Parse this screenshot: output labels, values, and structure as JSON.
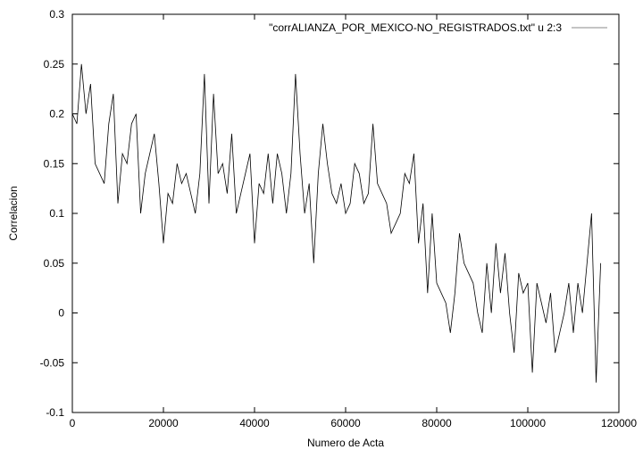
{
  "chart_data": {
    "type": "line",
    "title": "",
    "xlabel": "Numero de Acta",
    "ylabel": "Correlacion",
    "xlim": [
      0,
      120000
    ],
    "ylim": [
      -0.1,
      0.3
    ],
    "x_ticks": [
      0,
      20000,
      40000,
      60000,
      80000,
      100000,
      120000
    ],
    "x_tick_labels": [
      "0",
      "20000",
      "40000",
      "60000",
      "80000",
      "100000",
      "120000"
    ],
    "y_ticks": [
      -0.1,
      -0.05,
      0,
      0.05,
      0.1,
      0.15,
      0.2,
      0.25,
      0.3
    ],
    "y_tick_labels": [
      "-0.1",
      "-0.05",
      "0",
      "0.05",
      "0.1",
      "0.15",
      "0.2",
      "0.25",
      "0.3"
    ],
    "grid": false,
    "legend_position": "top-right",
    "line_color": "#000000",
    "legend_sample_color": "#a0a0a0",
    "series": [
      {
        "name": "\"corrALIANZA_POR_MEXICO-NO_REGISTRADOS.txt\" u 2:3",
        "x": [
          0,
          1000,
          2000,
          3000,
          4000,
          5000,
          6000,
          7000,
          8000,
          9000,
          10000,
          11000,
          12000,
          13000,
          14000,
          15000,
          16000,
          17000,
          18000,
          19000,
          20000,
          21000,
          22000,
          23000,
          24000,
          25000,
          26000,
          27000,
          28000,
          29000,
          30000,
          31000,
          32000,
          33000,
          34000,
          35000,
          36000,
          37000,
          38000,
          39000,
          40000,
          41000,
          42000,
          43000,
          44000,
          45000,
          46000,
          47000,
          48000,
          49000,
          50000,
          51000,
          52000,
          53000,
          54000,
          55000,
          56000,
          57000,
          58000,
          59000,
          60000,
          61000,
          62000,
          63000,
          64000,
          65000,
          66000,
          67000,
          68000,
          69000,
          70000,
          71000,
          72000,
          73000,
          74000,
          75000,
          76000,
          77000,
          78000,
          79000,
          80000,
          81000,
          82000,
          83000,
          84000,
          85000,
          86000,
          87000,
          88000,
          89000,
          90000,
          91000,
          92000,
          93000,
          94000,
          95000,
          96000,
          97000,
          98000,
          99000,
          100000,
          101000,
          102000,
          103000,
          104000,
          105000,
          106000,
          107000,
          108000,
          109000,
          110000,
          111000,
          112000,
          113000,
          114000,
          115000,
          116000
        ],
        "y": [
          0.2,
          0.19,
          0.25,
          0.2,
          0.23,
          0.15,
          0.14,
          0.13,
          0.19,
          0.22,
          0.11,
          0.16,
          0.15,
          0.19,
          0.2,
          0.1,
          0.14,
          0.16,
          0.18,
          0.13,
          0.07,
          0.12,
          0.11,
          0.15,
          0.13,
          0.14,
          0.12,
          0.1,
          0.14,
          0.24,
          0.11,
          0.22,
          0.14,
          0.15,
          0.12,
          0.18,
          0.1,
          0.12,
          0.14,
          0.16,
          0.07,
          0.13,
          0.12,
          0.16,
          0.11,
          0.16,
          0.14,
          0.1,
          0.14,
          0.24,
          0.16,
          0.1,
          0.13,
          0.05,
          0.14,
          0.19,
          0.15,
          0.12,
          0.11,
          0.13,
          0.1,
          0.11,
          0.15,
          0.14,
          0.11,
          0.12,
          0.19,
          0.13,
          0.12,
          0.11,
          0.08,
          0.09,
          0.1,
          0.14,
          0.13,
          0.16,
          0.07,
          0.11,
          0.02,
          0.1,
          0.03,
          0.02,
          0.01,
          -0.02,
          0.02,
          0.08,
          0.05,
          0.04,
          0.03,
          0.0,
          -0.02,
          0.05,
          0.0,
          0.07,
          0.02,
          0.06,
          0.0,
          -0.04,
          0.04,
          0.02,
          0.03,
          -0.06,
          0.03,
          0.01,
          -0.01,
          0.02,
          -0.04,
          -0.02,
          0.0,
          0.03,
          -0.02,
          0.03,
          0.0,
          0.05,
          0.1,
          -0.07,
          0.05
        ]
      }
    ]
  }
}
